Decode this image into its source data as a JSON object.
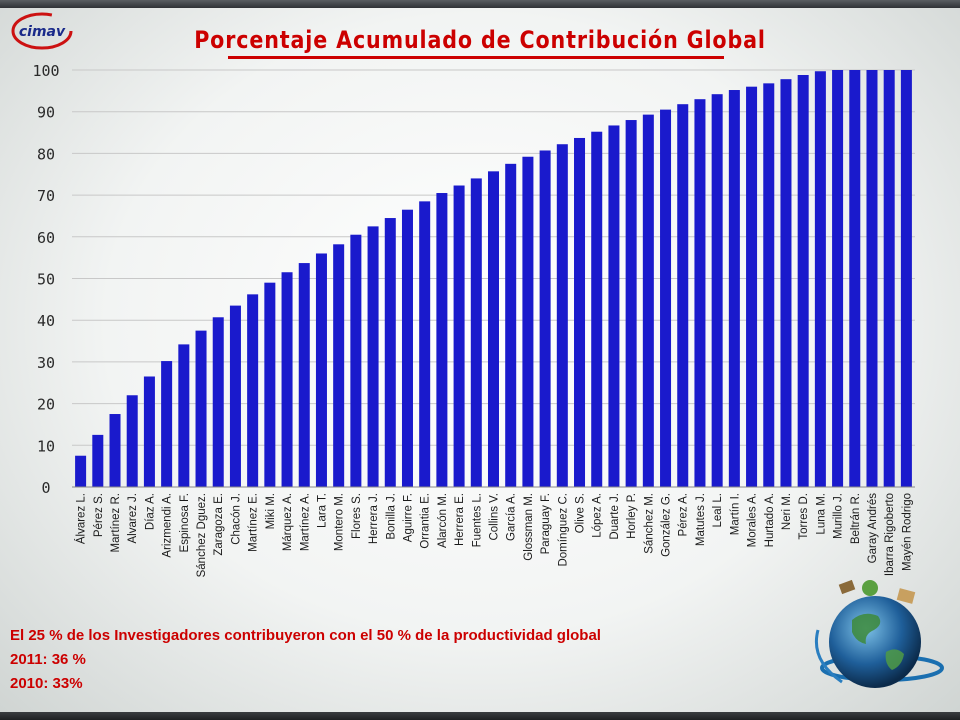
{
  "logo_text": "cimav",
  "title": "Porcentaje Acumulado de Contribución Global",
  "notes": [
    "El 25 % de los Investigadores contribuyeron con el 50 % de la productividad global",
    "2011: 36 %",
    "2010: 33%"
  ],
  "colors": {
    "bar": "#1a1acc",
    "title": "#cc0000",
    "grid": "#c8c8c8"
  },
  "chart_data": {
    "type": "bar",
    "title": "Porcentaje Acumulado de Contribución Global",
    "xlabel": "",
    "ylabel": "",
    "ylim": [
      0,
      100
    ],
    "yticks": [
      0,
      10,
      20,
      30,
      40,
      50,
      60,
      70,
      80,
      90,
      100
    ],
    "grid": true,
    "legend": "none",
    "categories": [
      "Álvarez L.",
      "Pérez S.",
      "Martínez R.",
      "Alvarez J.",
      "Díaz A.",
      "Arizmendi A.",
      "Espinosa F.",
      "Sánchez Dguez.",
      "Zaragoza E.",
      "Chacón J.",
      "Martínez E.",
      "Miki M.",
      "Márquez A.",
      "Martínez A.",
      "Lara T.",
      "Montero M.",
      "Flores S.",
      "Herrera J.",
      "Bonilla J.",
      "Aguirre F.",
      "Orrantia E.",
      "Alarcón M.",
      "Herrera E.",
      "Fuentes L.",
      "Collins V.",
      "García A.",
      "Glossman M.",
      "Paraguay F.",
      "Domínguez C.",
      "Olive S.",
      "López A.",
      "Duarte J.",
      "Horley P.",
      "Sánchez M.",
      "González G.",
      "Pérez A.",
      "Matutes J.",
      "Leal L.",
      "Martín I.",
      "Morales A.",
      "Hurtado A.",
      "Neri M.",
      "Torres D.",
      "Luna M.",
      "Murillo J.",
      "Beltrán R.",
      "Garay Andrés",
      "Ibarra Rigoberto",
      "Mayén Rodrigo"
    ],
    "values": [
      7.5,
      12.5,
      17.5,
      22,
      26.5,
      30.2,
      34.2,
      37.5,
      40.7,
      43.5,
      46.2,
      49,
      51.5,
      53.7,
      56,
      58.2,
      60.5,
      62.5,
      64.5,
      66.5,
      68.5,
      70.5,
      72.3,
      74,
      75.7,
      77.5,
      79.2,
      80.7,
      82.2,
      83.7,
      85.2,
      86.7,
      88,
      89.3,
      90.5,
      91.8,
      93,
      94.2,
      95.2,
      96,
      96.8,
      97.8,
      98.8,
      99.7,
      100,
      100,
      100,
      100,
      100
    ]
  }
}
